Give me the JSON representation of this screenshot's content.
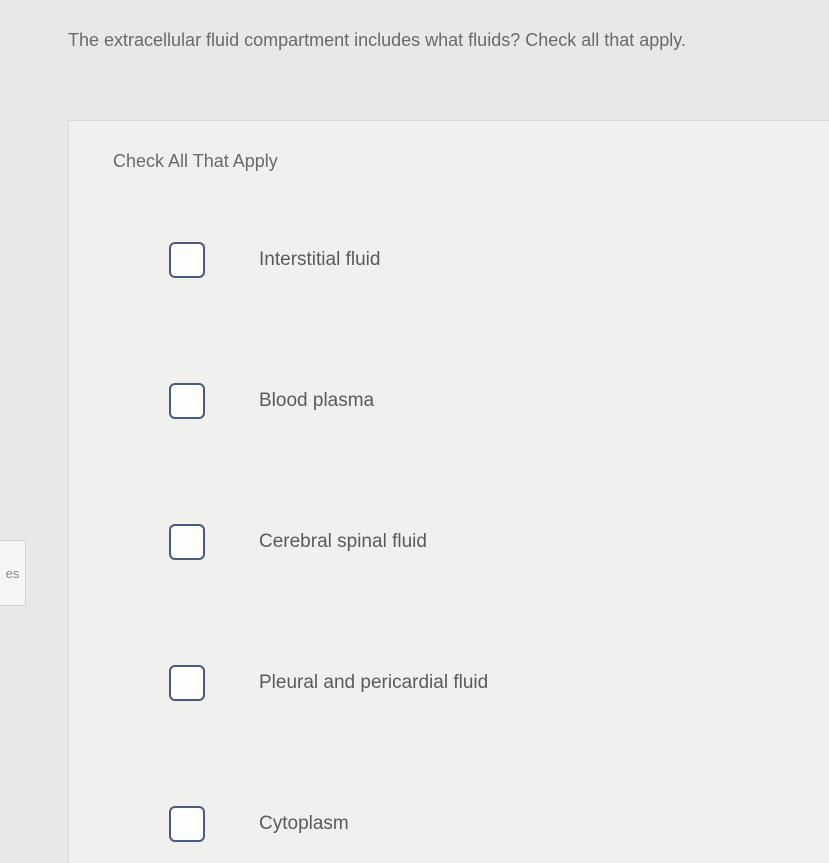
{
  "question": {
    "text": "The extracellular fluid compartment includes what fluids?  Check all that apply."
  },
  "panel": {
    "instruction": "Check All That Apply",
    "options": [
      {
        "label": "Interstitial fluid"
      },
      {
        "label": "Blood plasma"
      },
      {
        "label": "Cerebral spinal fluid"
      },
      {
        "label": "Pleural and pericardial fluid"
      },
      {
        "label": "Cytoplasm"
      }
    ]
  },
  "leftTab": {
    "label": "es"
  }
}
